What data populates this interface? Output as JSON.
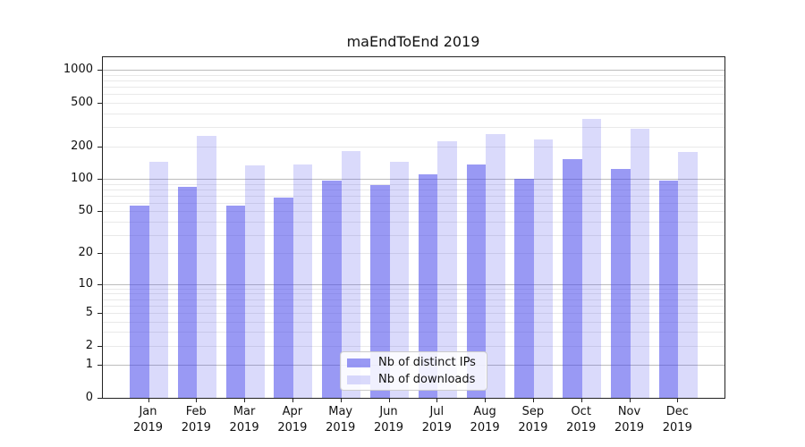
{
  "title": "maEndToEnd 2019",
  "colors": {
    "bar_distinct_ips": "rgba(70,70,235,0.55)",
    "bar_downloads": "rgba(70,70,235,0.20)",
    "bar_distinct_ips_hex": "#9999f1",
    "bar_downloads_hex": "#dedefb",
    "grid_major": "#bdbdbd",
    "grid_minor": "#e9e9e9",
    "axis": "#222222"
  },
  "chart_data": {
    "type": "bar",
    "title": "maEndToEnd 2019",
    "categories": [
      "Jan 2019",
      "Feb 2019",
      "Mar 2019",
      "Apr 2019",
      "May 2019",
      "Jun 2019",
      "Jul 2019",
      "Aug 2019",
      "Sep 2019",
      "Oct 2019",
      "Nov 2019",
      "Dec 2019"
    ],
    "series": [
      {
        "name": "Nb of distinct IPs",
        "color": "rgba(70,70,235,0.55)",
        "values": [
          57,
          85,
          57,
          67,
          96,
          87,
          111,
          137,
          101,
          152,
          123,
          96
        ]
      },
      {
        "name": "Nb of downloads",
        "color": "rgba(70,70,235,0.20)",
        "values": [
          144,
          248,
          134,
          136,
          181,
          145,
          224,
          259,
          232,
          359,
          289,
          178
        ]
      }
    ],
    "xlabel": "",
    "ylabel": "",
    "y_scale": "log1p",
    "y_ticks": [
      0,
      1,
      2,
      5,
      10,
      20,
      50,
      100,
      200,
      500,
      1000
    ],
    "y_grid_major_at": [
      1,
      10,
      100,
      1000
    ],
    "y_grid_minor": true,
    "ylim": [
      0,
      1340
    ],
    "grid": "horizontal",
    "legend_position": "lower-center inside plot"
  }
}
